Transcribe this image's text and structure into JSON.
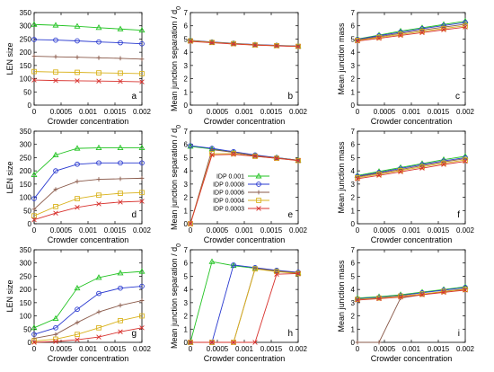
{
  "colors": {
    "IDP 0.001": "#22c322",
    "IDP 0.0008": "#2a3ad0",
    "IDP 0.0006": "#8a5a4a",
    "IDP 0.0004": "#d9b21c",
    "IDP 0.0003": "#d8322e"
  },
  "chart_data": [
    {
      "id": "a",
      "panel_label": "a",
      "type": "line",
      "xlabel": "Crowder concentration",
      "ylabel": "LEN size",
      "xlim": [
        0,
        0.002
      ],
      "ylim": [
        0,
        350
      ],
      "xticks": [
        "0",
        "0.0005",
        "0.001",
        "0.0015",
        "0.002"
      ],
      "yticks": [
        "0",
        "50",
        "100",
        "150",
        "200",
        "250",
        "300",
        "350"
      ],
      "x": [
        0,
        0.0004,
        0.0008,
        0.0012,
        0.0016,
        0.002
      ],
      "series": [
        {
          "name": "IDP 0.001",
          "marker": "triangle",
          "values": [
            305,
            302,
            298,
            293,
            288,
            283
          ]
        },
        {
          "name": "IDP 0.0008",
          "marker": "circle",
          "values": [
            248,
            246,
            243,
            239,
            236,
            232
          ]
        },
        {
          "name": "IDP 0.0006",
          "marker": "cross",
          "values": [
            185,
            183,
            181,
            179,
            177,
            174
          ]
        },
        {
          "name": "IDP 0.0004",
          "marker": "square",
          "values": [
            127,
            125,
            124,
            122,
            121,
            119
          ]
        },
        {
          "name": "IDP 0.0003",
          "marker": "x",
          "values": [
            95,
            93,
            92,
            91,
            90,
            88
          ]
        }
      ]
    },
    {
      "id": "b",
      "panel_label": "b",
      "type": "line",
      "xlabel": "Crowder concentration",
      "ylabel": "Mean junction separation / d",
      "ylabel_sub": "0",
      "xlim": [
        0,
        0.002
      ],
      "ylim": [
        0,
        7
      ],
      "xticks": [
        "0",
        "0.0005",
        "0.001",
        "0.0015",
        "0.002"
      ],
      "yticks": [
        "0",
        "1",
        "2",
        "3",
        "4",
        "5",
        "6",
        "7"
      ],
      "x": [
        0,
        0.0004,
        0.0008,
        0.0012,
        0.0016,
        0.002
      ],
      "series": [
        {
          "name": "IDP 0.001",
          "marker": "triangle",
          "values": [
            4.9,
            4.75,
            4.65,
            4.55,
            4.5,
            4.45
          ]
        },
        {
          "name": "IDP 0.0008",
          "marker": "circle",
          "values": [
            4.9,
            4.78,
            4.68,
            4.58,
            4.52,
            4.47
          ]
        },
        {
          "name": "IDP 0.0006",
          "marker": "cross",
          "values": [
            4.88,
            4.76,
            4.66,
            4.57,
            4.51,
            4.46
          ]
        },
        {
          "name": "IDP 0.0004",
          "marker": "square",
          "values": [
            4.86,
            4.74,
            4.65,
            4.55,
            4.5,
            4.45
          ]
        },
        {
          "name": "IDP 0.0003",
          "marker": "x",
          "values": [
            4.82,
            4.72,
            4.62,
            4.54,
            4.48,
            4.43
          ]
        }
      ]
    },
    {
      "id": "c",
      "panel_label": "c",
      "type": "line",
      "xlabel": "Crowder concentration",
      "ylabel": "Mean junction mass",
      "xlim": [
        0,
        0.002
      ],
      "ylim": [
        0,
        7
      ],
      "xticks": [
        "0",
        "0.0005",
        "0.001",
        "0.0015",
        "0.002"
      ],
      "yticks": [
        "0",
        "1",
        "2",
        "3",
        "4",
        "5",
        "6",
        "7"
      ],
      "x": [
        0,
        0.0004,
        0.0008,
        0.0012,
        0.0016,
        0.002
      ],
      "series": [
        {
          "name": "IDP 0.001",
          "marker": "triangle",
          "values": [
            5.0,
            5.3,
            5.6,
            5.85,
            6.1,
            6.35
          ]
        },
        {
          "name": "IDP 0.0008",
          "marker": "circle",
          "values": [
            4.97,
            5.25,
            5.52,
            5.78,
            6.02,
            6.25
          ]
        },
        {
          "name": "IDP 0.0006",
          "marker": "cross",
          "values": [
            4.93,
            5.18,
            5.43,
            5.68,
            5.9,
            6.12
          ]
        },
        {
          "name": "IDP 0.0004",
          "marker": "square",
          "values": [
            4.9,
            5.12,
            5.35,
            5.58,
            5.8,
            6.0
          ]
        },
        {
          "name": "IDP 0.0003",
          "marker": "x",
          "values": [
            4.85,
            5.05,
            5.27,
            5.48,
            5.7,
            5.9
          ]
        }
      ]
    },
    {
      "id": "d",
      "panel_label": "d",
      "type": "line",
      "xlabel": "Crowder concentration",
      "ylabel": "LEN size",
      "xlim": [
        0,
        0.002
      ],
      "ylim": [
        0,
        350
      ],
      "xticks": [
        "0",
        "0.0005",
        "0.001",
        "0.0015",
        "0.002"
      ],
      "yticks": [
        "0",
        "50",
        "100",
        "150",
        "200",
        "250",
        "300",
        "350"
      ],
      "x": [
        0,
        0.0004,
        0.0008,
        0.0012,
        0.0016,
        0.002
      ],
      "series": [
        {
          "name": "IDP 0.001",
          "marker": "triangle",
          "values": [
            185,
            260,
            285,
            287,
            287,
            287
          ]
        },
        {
          "name": "IDP 0.0008",
          "marker": "circle",
          "values": [
            95,
            200,
            225,
            230,
            230,
            230
          ]
        },
        {
          "name": "IDP 0.0006",
          "marker": "cross",
          "values": [
            55,
            130,
            160,
            168,
            170,
            172
          ]
        },
        {
          "name": "IDP 0.0004",
          "marker": "square",
          "values": [
            30,
            65,
            95,
            108,
            115,
            118
          ]
        },
        {
          "name": "IDP 0.0003",
          "marker": "x",
          "values": [
            15,
            40,
            62,
            75,
            82,
            85
          ]
        }
      ]
    },
    {
      "id": "e",
      "panel_label": "e",
      "type": "line",
      "xlabel": "Crowder concentration",
      "ylabel": "Mean junction separation / d",
      "ylabel_sub": "0",
      "xlim": [
        0,
        0.002
      ],
      "ylim": [
        0,
        7
      ],
      "xticks": [
        "0",
        "0.0005",
        "0.001",
        "0.0015",
        "0.002"
      ],
      "yticks": [
        "0",
        "1",
        "2",
        "3",
        "4",
        "5",
        "6",
        "7"
      ],
      "legend": [
        "IDP 0.001",
        "IDP 0.0008",
        "IDP 0.0006",
        "IDP 0.0004",
        "IDP 0.0003"
      ],
      "x": [
        0,
        0.0004,
        0.0008,
        0.0012,
        0.0016,
        0.002
      ],
      "series": [
        {
          "name": "IDP 0.001",
          "marker": "triangle",
          "values": [
            5.85,
            5.65,
            5.4,
            5.15,
            5.0,
            4.8
          ]
        },
        {
          "name": "IDP 0.0008",
          "marker": "circle",
          "values": [
            5.9,
            5.7,
            5.45,
            5.2,
            5.0,
            4.8
          ]
        },
        {
          "name": "IDP 0.0006",
          "marker": "cross",
          "values": [
            0,
            5.6,
            5.4,
            5.15,
            4.98,
            4.8
          ]
        },
        {
          "name": "IDP 0.0004",
          "marker": "square",
          "values": [
            0,
            5.3,
            5.3,
            5.1,
            4.95,
            4.78
          ]
        },
        {
          "name": "IDP 0.0003",
          "marker": "x",
          "values": [
            0,
            5.2,
            5.25,
            5.1,
            4.95,
            4.78
          ]
        }
      ]
    },
    {
      "id": "f",
      "panel_label": "f",
      "type": "line",
      "xlabel": "Crowder concentration",
      "ylabel": "Mean junction mass",
      "xlim": [
        0,
        0.002
      ],
      "ylim": [
        0,
        7
      ],
      "xticks": [
        "0",
        "0.0005",
        "0.001",
        "0.0015",
        "0.002"
      ],
      "yticks": [
        "0",
        "1",
        "2",
        "3",
        "4",
        "5",
        "6",
        "7"
      ],
      "x": [
        0,
        0.0004,
        0.0008,
        0.0012,
        0.0016,
        0.002
      ],
      "series": [
        {
          "name": "IDP 0.001",
          "marker": "triangle",
          "values": [
            3.65,
            3.95,
            4.25,
            4.55,
            4.85,
            5.1
          ]
        },
        {
          "name": "IDP 0.0008",
          "marker": "circle",
          "values": [
            3.6,
            3.88,
            4.18,
            4.48,
            4.75,
            5.0
          ]
        },
        {
          "name": "IDP 0.0006",
          "marker": "cross",
          "values": [
            3.55,
            3.82,
            4.1,
            4.4,
            4.68,
            4.92
          ]
        },
        {
          "name": "IDP 0.0004",
          "marker": "square",
          "values": [
            3.48,
            3.75,
            4.02,
            4.3,
            4.58,
            4.82
          ]
        },
        {
          "name": "IDP 0.0003",
          "marker": "x",
          "values": [
            3.4,
            3.66,
            3.93,
            4.2,
            4.48,
            4.72
          ]
        }
      ]
    },
    {
      "id": "g",
      "panel_label": "g",
      "type": "line",
      "xlabel": "Crowder concentration",
      "ylabel": "LEN size",
      "xlim": [
        0,
        0.002
      ],
      "ylim": [
        0,
        350
      ],
      "xticks": [
        "0",
        "0.0005",
        "0.001",
        "0.0015",
        "0.002"
      ],
      "yticks": [
        "0",
        "50",
        "100",
        "150",
        "200",
        "250",
        "300",
        "350"
      ],
      "x": [
        0,
        0.0004,
        0.0008,
        0.0012,
        0.0016,
        0.002
      ],
      "series": [
        {
          "name": "IDP 0.001",
          "marker": "triangle",
          "values": [
            55,
            90,
            205,
            245,
            262,
            268
          ]
        },
        {
          "name": "IDP 0.0008",
          "marker": "circle",
          "values": [
            30,
            55,
            125,
            185,
            205,
            212
          ]
        },
        {
          "name": "IDP 0.0006",
          "marker": "cross",
          "values": [
            15,
            30,
            75,
            115,
            140,
            158
          ]
        },
        {
          "name": "IDP 0.0004",
          "marker": "square",
          "values": [
            5,
            12,
            30,
            55,
            82,
            100
          ]
        },
        {
          "name": "IDP 0.0003",
          "marker": "x",
          "values": [
            0,
            3,
            10,
            20,
            40,
            55
          ]
        }
      ]
    },
    {
      "id": "h",
      "panel_label": "h",
      "type": "line",
      "xlabel": "Crowder concentration",
      "ylabel": "Mean junction separation / d",
      "ylabel_sub": "0",
      "xlim": [
        0,
        0.002
      ],
      "ylim": [
        0,
        7
      ],
      "xticks": [
        "0",
        "0.0005",
        "0.001",
        "0.0015",
        "0.002"
      ],
      "yticks": [
        "0",
        "1",
        "2",
        "3",
        "4",
        "5",
        "6",
        "7"
      ],
      "x": [
        0,
        0.0004,
        0.0008,
        0.0012,
        0.0016,
        0.002
      ],
      "series": [
        {
          "name": "IDP 0.001",
          "marker": "triangle",
          "values": [
            0,
            6.1,
            5.8,
            5.6,
            5.4,
            5.25
          ]
        },
        {
          "name": "IDP 0.0008",
          "marker": "circle",
          "values": [
            0,
            0,
            5.85,
            5.65,
            5.45,
            5.3
          ]
        },
        {
          "name": "IDP 0.0006",
          "marker": "cross",
          "values": [
            0,
            0,
            0,
            5.6,
            5.4,
            5.25
          ]
        },
        {
          "name": "IDP 0.0004",
          "marker": "square",
          "values": [
            0,
            0,
            0,
            5.55,
            5.35,
            5.2
          ]
        },
        {
          "name": "IDP 0.0003",
          "marker": "x",
          "values": [
            0,
            0,
            0,
            0,
            5.15,
            5.2
          ]
        }
      ]
    },
    {
      "id": "i",
      "panel_label": "i",
      "type": "line",
      "xlabel": "Crowder concentration",
      "ylabel": "Mean junction mass",
      "xlim": [
        0,
        0.002
      ],
      "ylim": [
        0,
        7
      ],
      "xticks": [
        "0",
        "0.0005",
        "0.001",
        "0.0015",
        "0.002"
      ],
      "yticks": [
        "0",
        "1",
        "2",
        "3",
        "4",
        "5",
        "6",
        "7"
      ],
      "x": [
        0,
        0.0004,
        0.0008,
        0.0012,
        0.0016,
        0.002
      ],
      "series": [
        {
          "name": "IDP 0.001",
          "marker": "triangle",
          "values": [
            3.35,
            3.45,
            3.6,
            3.8,
            4.0,
            4.2
          ]
        },
        {
          "name": "IDP 0.0008",
          "marker": "circle",
          "values": [
            3.3,
            3.4,
            3.55,
            3.75,
            3.95,
            4.15
          ]
        },
        {
          "name": "IDP 0.0006",
          "marker": "cross",
          "values": [
            0,
            0,
            3.35,
            3.6,
            3.85,
            4.05
          ]
        },
        {
          "name": "IDP 0.0004",
          "marker": "square",
          "values": [
            3.25,
            3.35,
            3.5,
            3.65,
            3.85,
            4.0
          ]
        },
        {
          "name": "IDP 0.0003",
          "marker": "x",
          "values": [
            3.2,
            3.3,
            3.42,
            3.6,
            3.78,
            3.95
          ]
        }
      ]
    }
  ]
}
